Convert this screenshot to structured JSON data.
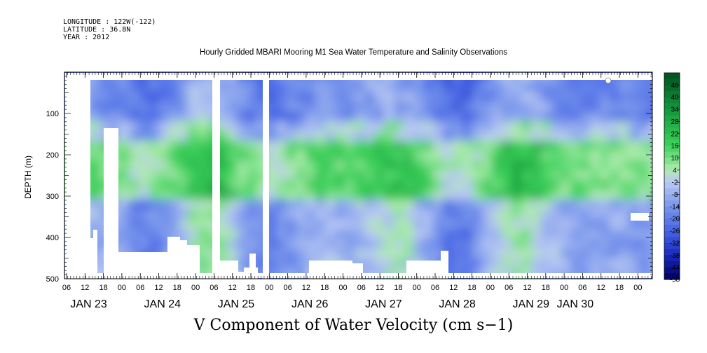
{
  "header": {
    "longitude": "LONGITUDE : 122W(-122)",
    "latitude": "LATITUDE : 36.8N",
    "year": "YEAR : 2012"
  },
  "chart_data": {
    "type": "heatmap",
    "title": "Hourly Gridded MBARI Mooring M1 Sea Water Temperature and Salinity Observations",
    "bottom_title": "V Component of Water Velocity (cm s−1)",
    "ylabel": "DEPTH (m)",
    "xlabel": "",
    "y_axis": {
      "reversed": true,
      "range": [
        500,
        0
      ],
      "ticks": [
        100,
        200,
        300,
        400,
        500
      ]
    },
    "x_axis": {
      "hour_ticks": [
        "06",
        "12",
        "18",
        "00",
        "06",
        "12",
        "18",
        "00",
        "06",
        "12",
        "18",
        "00",
        "06",
        "12",
        "18",
        "00",
        "06",
        "12",
        "18",
        "00",
        "06",
        "12",
        "18",
        "00",
        "06",
        "12",
        "18",
        "00",
        "06",
        "12",
        "18",
        "00"
      ],
      "day_labels": [
        "JAN 23",
        "JAN 24",
        "JAN 25",
        "JAN 26",
        "JAN 27",
        "JAN 28",
        "JAN 29",
        "JAN 30"
      ],
      "start": "2012-01-23T06:00",
      "end": "2012-01-30T06:00"
    },
    "colorbar": {
      "labels": [
        "46",
        "40",
        "34",
        "28",
        "22",
        "16",
        "10",
        "4",
        "-2",
        "-8",
        "-14",
        "-20",
        "-26",
        "-32",
        "-38",
        "-44",
        "-50"
      ],
      "range": [
        -50,
        52
      ]
    },
    "approx_value_bands": [
      {
        "depth_range": [
          20,
          100
        ],
        "value_range": [
          -26,
          -10
        ]
      },
      {
        "depth_range": [
          150,
          280
        ],
        "value_range": [
          4,
          22
        ]
      },
      {
        "depth_range": [
          300,
          480
        ],
        "value_range": [
          -20,
          4
        ]
      }
    ],
    "grid": false
  }
}
